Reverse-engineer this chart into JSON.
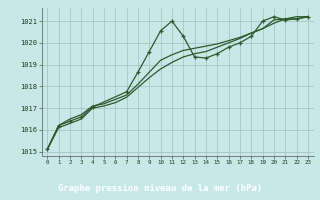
{
  "title": "Graphe pression niveau de la mer (hPa)",
  "bg_color": "#c8e8e8",
  "label_bg_color": "#2d6b2d",
  "label_text_color": "#ffffff",
  "grid_color": "#a0c0c0",
  "line_color": "#2d5a2d",
  "marker_color": "#2d5a2d",
  "xlim": [
    -0.5,
    23.5
  ],
  "ylim": [
    1014.8,
    1021.6
  ],
  "yticks": [
    1015,
    1016,
    1017,
    1018,
    1019,
    1020,
    1021
  ],
  "xticks": [
    0,
    1,
    2,
    3,
    4,
    5,
    6,
    7,
    8,
    9,
    10,
    11,
    12,
    13,
    14,
    15,
    16,
    17,
    18,
    19,
    20,
    21,
    22,
    23
  ],
  "series": [
    {
      "x": [
        0,
        1,
        2,
        3,
        4,
        7,
        8,
        9,
        10,
        11,
        12,
        13,
        14,
        15,
        16,
        17,
        18,
        19,
        20,
        21,
        22,
        23
      ],
      "y": [
        1015.1,
        1016.2,
        1016.4,
        1016.6,
        1017.05,
        1017.75,
        1018.65,
        1019.6,
        1020.55,
        1021.0,
        1020.3,
        1019.35,
        1019.3,
        1019.5,
        1019.8,
        1020.0,
        1020.3,
        1021.0,
        1021.2,
        1021.05,
        1021.1,
        1021.2
      ],
      "marker": true
    },
    {
      "x": [
        0,
        1,
        2,
        3,
        4,
        5,
        6,
        7,
        8,
        9,
        10,
        11,
        12,
        13,
        14,
        15,
        16,
        17,
        18,
        19,
        20,
        21,
        22,
        23
      ],
      "y": [
        1015.1,
        1016.2,
        1016.5,
        1016.7,
        1017.1,
        1017.2,
        1017.4,
        1017.6,
        1018.1,
        1018.65,
        1019.2,
        1019.45,
        1019.65,
        1019.75,
        1019.85,
        1019.95,
        1020.1,
        1020.25,
        1020.45,
        1020.65,
        1021.05,
        1021.1,
        1021.2,
        1021.2
      ],
      "marker": false
    },
    {
      "x": [
        0,
        1,
        2,
        3,
        4,
        5,
        6,
        7,
        8,
        9,
        10,
        11,
        12,
        13,
        14,
        15,
        16,
        17,
        18,
        19,
        20,
        21,
        22,
        23
      ],
      "y": [
        1015.1,
        1016.1,
        1016.3,
        1016.5,
        1017.0,
        1017.1,
        1017.25,
        1017.5,
        1017.95,
        1018.4,
        1018.8,
        1019.1,
        1019.35,
        1019.5,
        1019.6,
        1019.8,
        1020.0,
        1020.2,
        1020.45,
        1020.65,
        1020.9,
        1021.1,
        1021.1,
        1021.2
      ],
      "marker": false
    }
  ]
}
